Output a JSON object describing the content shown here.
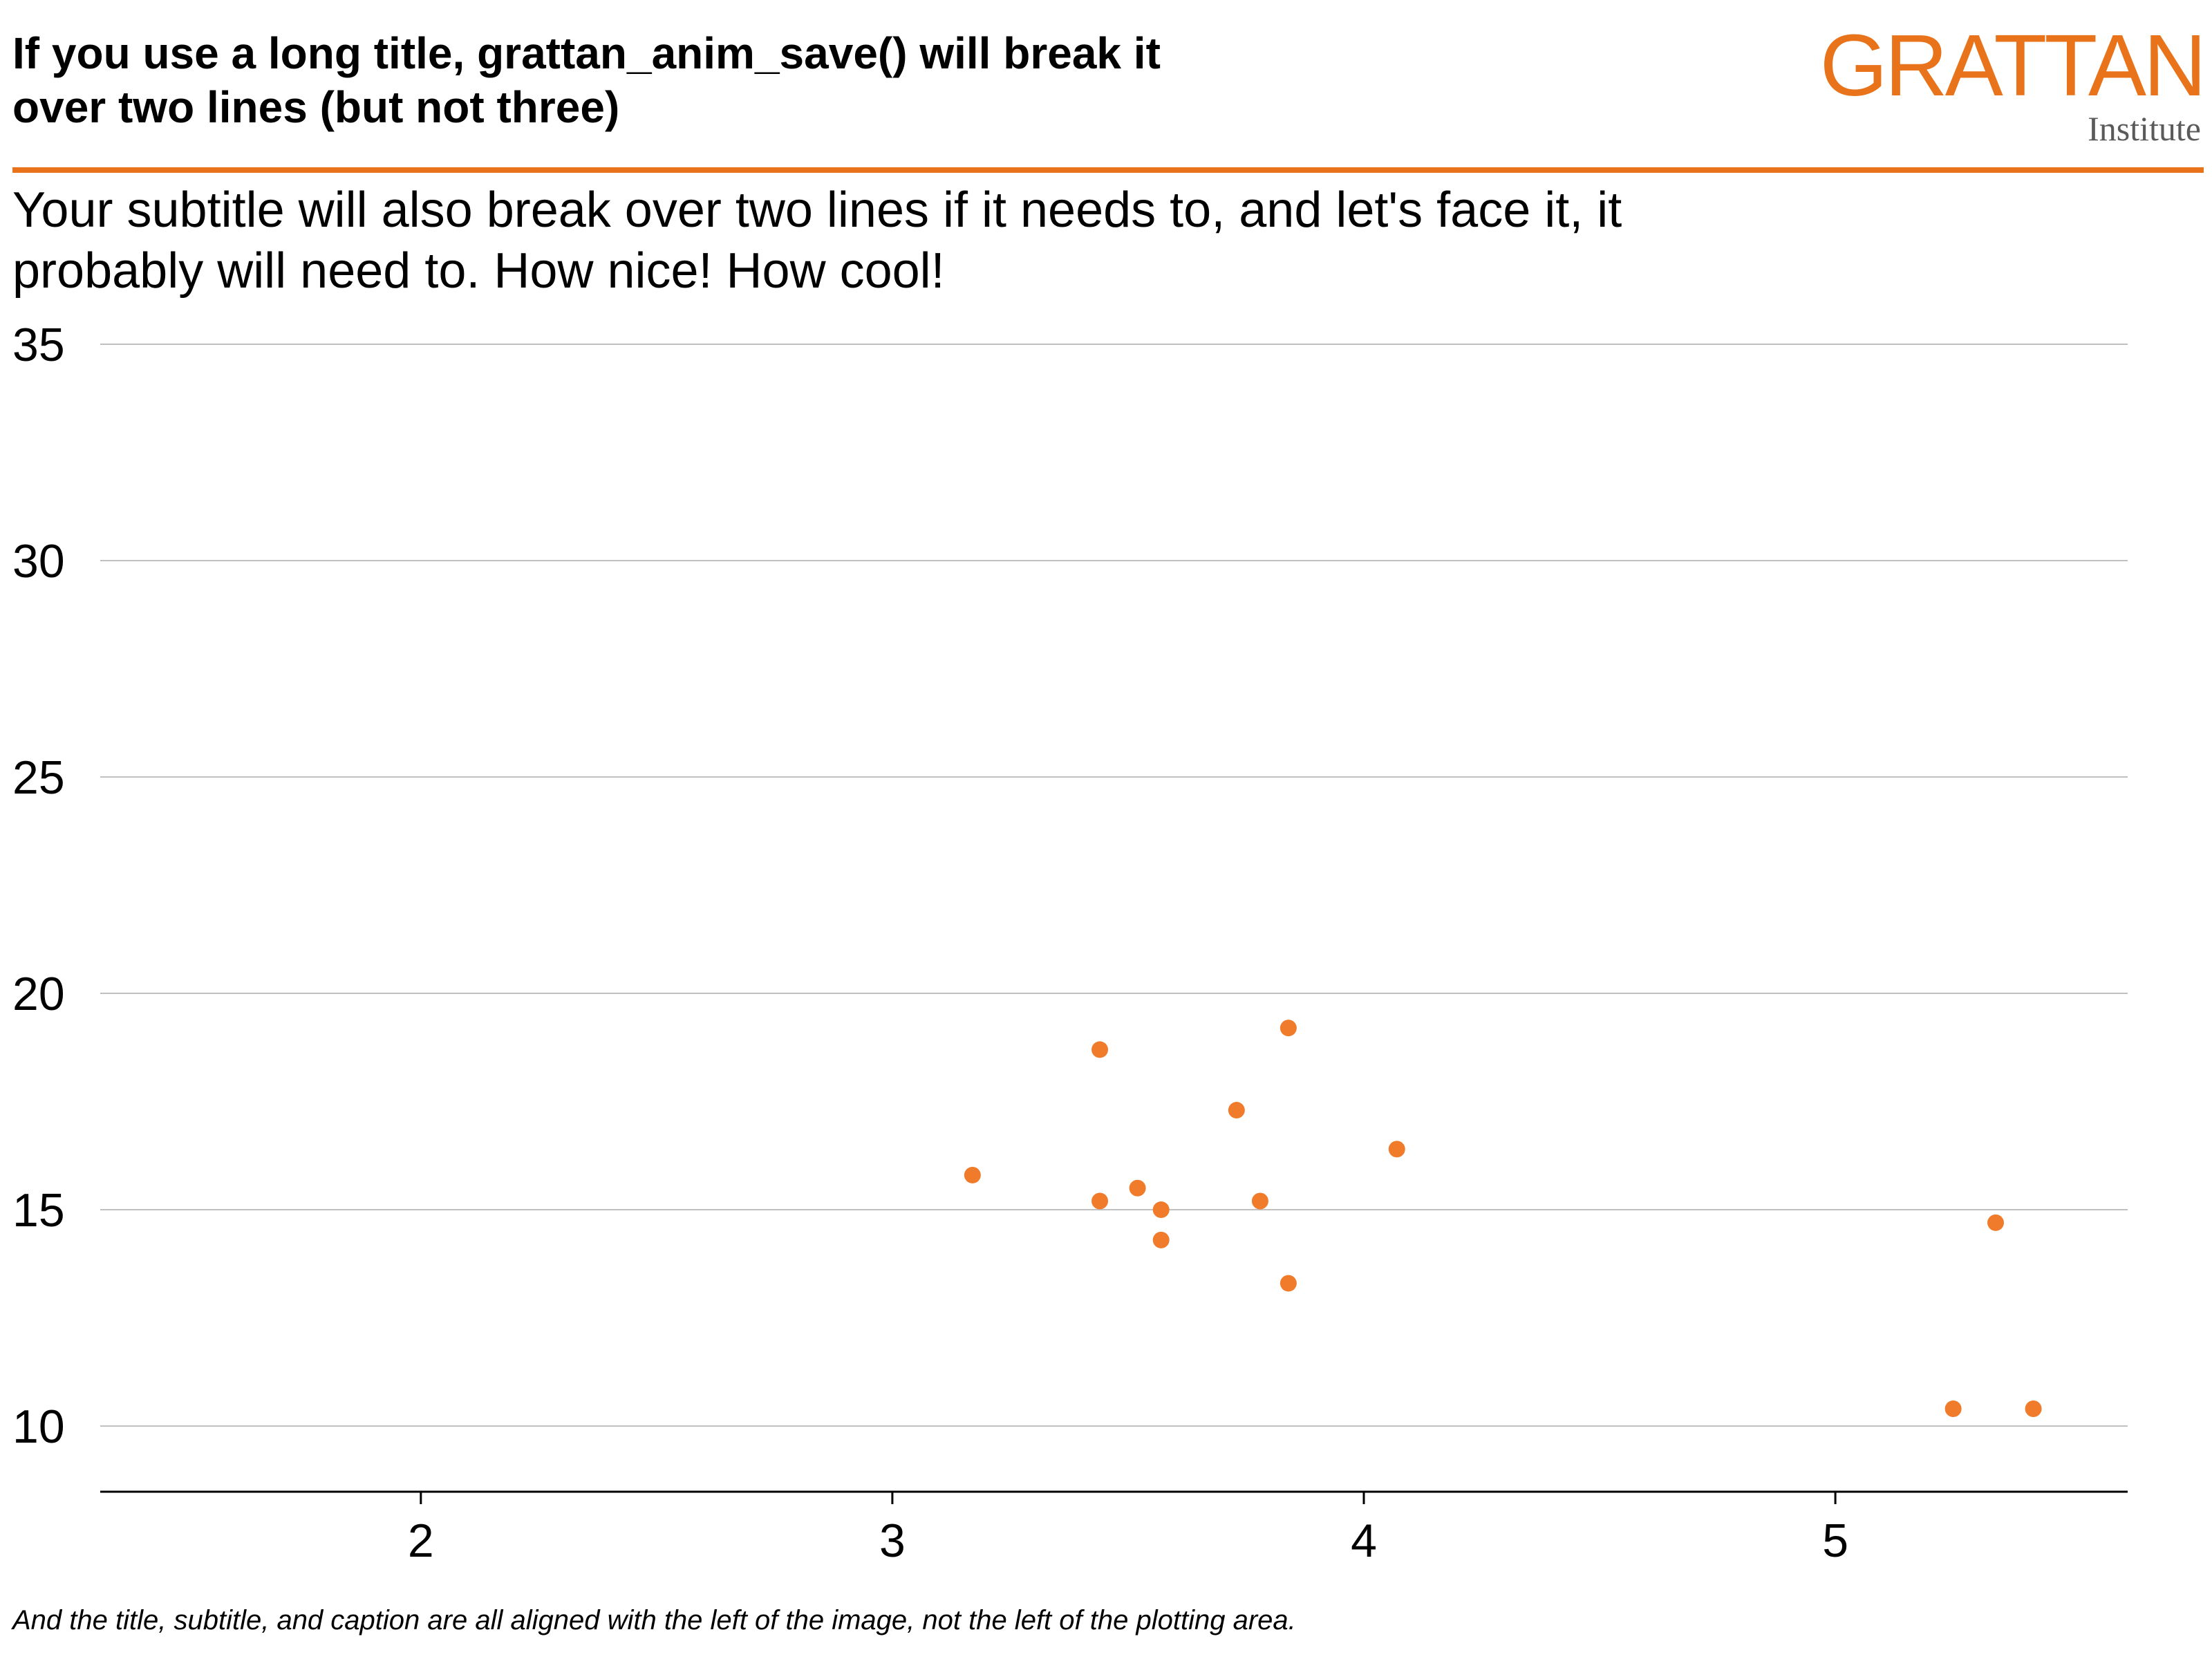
{
  "header": {
    "title": "If you use a long title, grattan_anim_save() will break it\nover two lines (but not three)",
    "subtitle": "Your subtitle will also break over two lines if it needs to, and let's face it, it\nprobably will need to. How nice! How cool!",
    "caption": "And the title, subtitle, and caption are all aligned with the left of the image, not the left of the plotting area."
  },
  "logo": {
    "wordmark": "GRATTAN",
    "sub": "Institute",
    "color": "#e8731a"
  },
  "colors": {
    "accent": "#e8731a",
    "points": "#f07b2a",
    "grid": "#c0c0c0",
    "axis": "#000000"
  },
  "chart_data": {
    "type": "scatter",
    "title": "If you use a long title, grattan_anim_save() will break it over two lines (but not three)",
    "subtitle": "Your subtitle will also break over two lines if it needs to, and let's face it, it probably will need to. How nice! How cool!",
    "xlabel": "",
    "ylabel": "",
    "xlim": [
      1.32,
      5.62
    ],
    "ylim": [
      9.25,
      35
    ],
    "x_ticks": [
      2,
      3,
      4,
      5
    ],
    "y_ticks": [
      10,
      15,
      20,
      25,
      30,
      35
    ],
    "grid": "horizontal",
    "legend": "none",
    "points": [
      {
        "x": 3.17,
        "y": 15.8
      },
      {
        "x": 3.44,
        "y": 18.7
      },
      {
        "x": 3.84,
        "y": 19.2
      },
      {
        "x": 3.73,
        "y": 17.3
      },
      {
        "x": 4.07,
        "y": 16.4
      },
      {
        "x": 3.52,
        "y": 15.5
      },
      {
        "x": 3.44,
        "y": 15.2
      },
      {
        "x": 3.57,
        "y": 15.0
      },
      {
        "x": 3.78,
        "y": 15.2
      },
      {
        "x": 3.57,
        "y": 14.3
      },
      {
        "x": 3.84,
        "y": 13.3
      },
      {
        "x": 5.34,
        "y": 14.7
      },
      {
        "x": 5.25,
        "y": 10.4
      },
      {
        "x": 5.42,
        "y": 10.4
      }
    ]
  }
}
